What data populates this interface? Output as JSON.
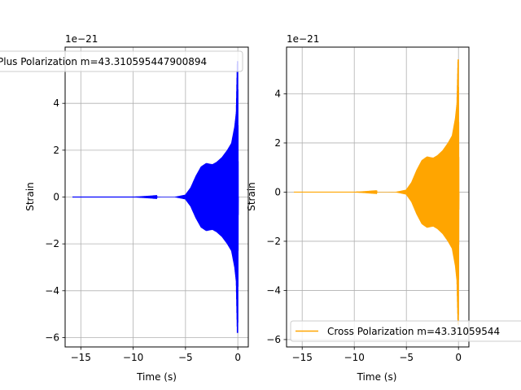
{
  "chart_data": [
    {
      "type": "line",
      "xlabel": "Time (s)",
      "ylabel": "Strain",
      "offset_text": "1e−21",
      "xlim": [
        -16.5,
        1.0
      ],
      "ylim": [
        -6.4,
        6.4
      ],
      "xticks": [
        -15,
        -10,
        -5,
        0
      ],
      "xtick_labels": [
        "−15",
        "−10",
        "−5",
        "0"
      ],
      "yticks": [
        -6,
        -4,
        -2,
        0,
        2,
        4
      ],
      "ytick_labels": [
        "−6",
        "−4",
        "−2",
        "0",
        "2",
        "4"
      ],
      "grid": true,
      "legend_position": "top-left",
      "series": [
        {
          "name": "Plus Polarization m=43.310595447900894",
          "color": "#0000ff",
          "x": [
            -15.8,
            -10,
            -6,
            -5,
            -4.5,
            -4,
            -3.5,
            -3,
            -2.7,
            -2.4,
            -2,
            -1.5,
            -1,
            -0.6,
            -0.3,
            -0.15,
            -0.05,
            0,
            0.05
          ],
          "envelope": [
            0,
            0,
            0.01,
            0.1,
            0.4,
            0.9,
            1.3,
            1.45,
            1.42,
            1.4,
            1.5,
            1.7,
            2.0,
            2.3,
            3.0,
            3.6,
            5.8,
            5.8,
            0
          ]
        }
      ]
    },
    {
      "type": "line",
      "xlabel": "Time (s)",
      "ylabel": "Strain",
      "offset_text": "1e−21",
      "xlim": [
        -16.5,
        1.0
      ],
      "ylim": [
        -6.3,
        5.9
      ],
      "xticks": [
        -15,
        -10,
        -5,
        0
      ],
      "xtick_labels": [
        "−15",
        "−10",
        "−5",
        "0"
      ],
      "yticks": [
        -6,
        -4,
        -2,
        0,
        2,
        4
      ],
      "ytick_labels": [
        "−6",
        "−4",
        "−2",
        "0",
        "2",
        "4"
      ],
      "grid": true,
      "legend_position": "bottom-left",
      "series": [
        {
          "name": "Cross Polarization m=43.31059544",
          "color": "#ffa500",
          "x": [
            -15.8,
            -10,
            -6,
            -5,
            -4.5,
            -4,
            -3.5,
            -3,
            -2.7,
            -2.4,
            -2,
            -1.5,
            -1,
            -0.6,
            -0.3,
            -0.15,
            -0.05,
            0,
            0.05
          ],
          "envelope": [
            0,
            0,
            0.01,
            0.1,
            0.4,
            0.9,
            1.3,
            1.45,
            1.42,
            1.4,
            1.5,
            1.7,
            2.0,
            2.3,
            3.0,
            3.6,
            5.4,
            5.4,
            0
          ]
        }
      ]
    }
  ]
}
